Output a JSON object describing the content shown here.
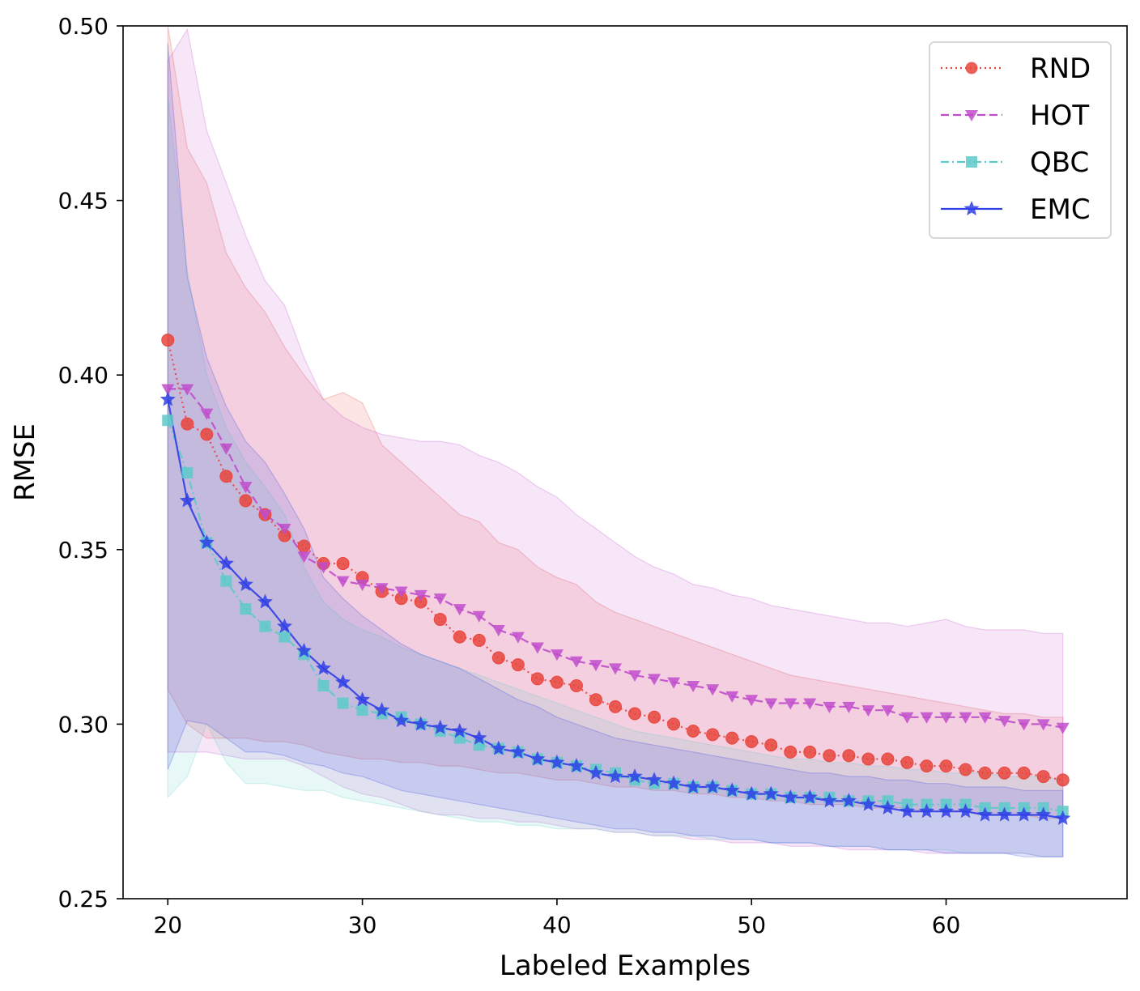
{
  "chart_data": {
    "type": "line",
    "title": "",
    "xlabel": "Labeled Examples",
    "ylabel": "RMSE",
    "xlim": [
      17.7,
      69.3
    ],
    "ylim": [
      0.25,
      0.5
    ],
    "xticks": [
      20,
      30,
      40,
      50,
      60
    ],
    "yticks": [
      0.25,
      0.3,
      0.35,
      0.4,
      0.45,
      0.5
    ],
    "ytick_labels": [
      "0.25",
      "0.30",
      "0.35",
      "0.40",
      "0.45",
      "0.50"
    ],
    "grid": false,
    "legend_position": "top-right",
    "series": [
      {
        "name": "RND",
        "color": "#e8453c",
        "linestyle": "dotted",
        "marker": "circle",
        "x_start": 20,
        "values": [
          0.41,
          0.386,
          0.383,
          0.371,
          0.364,
          0.36,
          0.354,
          0.351,
          0.346,
          0.346,
          0.342,
          0.338,
          0.336,
          0.335,
          0.33,
          0.325,
          0.324,
          0.319,
          0.317,
          0.313,
          0.312,
          0.311,
          0.307,
          0.305,
          0.303,
          0.302,
          0.3,
          0.298,
          0.297,
          0.296,
          0.295,
          0.294,
          0.292,
          0.292,
          0.291,
          0.291,
          0.29,
          0.29,
          0.289,
          0.288,
          0.288,
          0.287,
          0.286,
          0.286,
          0.286,
          0.285,
          0.284
        ],
        "upper": [
          0.5,
          0.465,
          0.455,
          0.435,
          0.425,
          0.418,
          0.408,
          0.4,
          0.393,
          0.395,
          0.392,
          0.38,
          0.375,
          0.37,
          0.365,
          0.36,
          0.358,
          0.352,
          0.35,
          0.345,
          0.342,
          0.34,
          0.335,
          0.332,
          0.33,
          0.328,
          0.326,
          0.324,
          0.322,
          0.32,
          0.318,
          0.316,
          0.314,
          0.313,
          0.312,
          0.311,
          0.31,
          0.309,
          0.308,
          0.307,
          0.306,
          0.305,
          0.304,
          0.303,
          0.303,
          0.302,
          0.302
        ],
        "lower": [
          0.31,
          0.3,
          0.296,
          0.296,
          0.296,
          0.295,
          0.295,
          0.294,
          0.292,
          0.291,
          0.29,
          0.29,
          0.289,
          0.289,
          0.288,
          0.288,
          0.287,
          0.286,
          0.286,
          0.285,
          0.284,
          0.284,
          0.283,
          0.282,
          0.282,
          0.281,
          0.281,
          0.28,
          0.28,
          0.279,
          0.279,
          0.278,
          0.278,
          0.277,
          0.277,
          0.277,
          0.276,
          0.276,
          0.276,
          0.275,
          0.275,
          0.275,
          0.274,
          0.274,
          0.274,
          0.273,
          0.273
        ]
      },
      {
        "name": "HOT",
        "color": "#c04ccb",
        "linestyle": "dashed",
        "marker": "triangle-down",
        "x_start": 20,
        "values": [
          0.396,
          0.396,
          0.389,
          0.379,
          0.368,
          0.36,
          0.356,
          0.348,
          0.345,
          0.341,
          0.34,
          0.339,
          0.338,
          0.337,
          0.336,
          0.333,
          0.331,
          0.327,
          0.325,
          0.322,
          0.32,
          0.318,
          0.317,
          0.316,
          0.314,
          0.313,
          0.312,
          0.311,
          0.31,
          0.308,
          0.307,
          0.306,
          0.306,
          0.306,
          0.305,
          0.305,
          0.304,
          0.304,
          0.302,
          0.302,
          0.302,
          0.302,
          0.302,
          0.301,
          0.3,
          0.3,
          0.299
        ],
        "upper": [
          0.49,
          0.499,
          0.47,
          0.455,
          0.44,
          0.427,
          0.42,
          0.405,
          0.393,
          0.388,
          0.385,
          0.383,
          0.382,
          0.381,
          0.381,
          0.38,
          0.377,
          0.375,
          0.372,
          0.368,
          0.365,
          0.36,
          0.356,
          0.352,
          0.348,
          0.345,
          0.343,
          0.34,
          0.339,
          0.337,
          0.336,
          0.334,
          0.333,
          0.332,
          0.331,
          0.33,
          0.329,
          0.329,
          0.328,
          0.329,
          0.33,
          0.328,
          0.327,
          0.327,
          0.327,
          0.326,
          0.326
        ],
        "lower": [
          0.292,
          0.292,
          0.292,
          0.291,
          0.29,
          0.29,
          0.29,
          0.288,
          0.285,
          0.282,
          0.28,
          0.279,
          0.277,
          0.275,
          0.274,
          0.274,
          0.273,
          0.273,
          0.272,
          0.272,
          0.271,
          0.27,
          0.27,
          0.269,
          0.269,
          0.268,
          0.268,
          0.267,
          0.267,
          0.266,
          0.266,
          0.266,
          0.265,
          0.265,
          0.265,
          0.264,
          0.264,
          0.264,
          0.264,
          0.263,
          0.263,
          0.263,
          0.263,
          0.263,
          0.263,
          0.262,
          0.262
        ]
      },
      {
        "name": "QBC",
        "color": "#5ccac9",
        "linestyle": "dashdot",
        "marker": "square",
        "x_start": 20,
        "values": [
          0.387,
          0.372,
          0.352,
          0.341,
          0.333,
          0.328,
          0.325,
          0.32,
          0.311,
          0.306,
          0.304,
          0.303,
          0.302,
          0.3,
          0.298,
          0.296,
          0.294,
          0.293,
          0.292,
          0.29,
          0.289,
          0.288,
          0.287,
          0.286,
          0.284,
          0.283,
          0.283,
          0.282,
          0.282,
          0.281,
          0.28,
          0.28,
          0.279,
          0.279,
          0.279,
          0.278,
          0.278,
          0.278,
          0.277,
          0.277,
          0.277,
          0.277,
          0.276,
          0.276,
          0.276,
          0.276,
          0.275
        ],
        "upper": [
          0.48,
          0.43,
          0.4,
          0.385,
          0.375,
          0.368,
          0.36,
          0.345,
          0.335,
          0.33,
          0.327,
          0.325,
          0.322,
          0.32,
          0.318,
          0.316,
          0.314,
          0.312,
          0.31,
          0.308,
          0.306,
          0.304,
          0.302,
          0.3,
          0.298,
          0.297,
          0.296,
          0.295,
          0.294,
          0.293,
          0.292,
          0.291,
          0.29,
          0.29,
          0.289,
          0.289,
          0.288,
          0.288,
          0.287,
          0.287,
          0.286,
          0.286,
          0.286,
          0.285,
          0.285,
          0.285,
          0.284
        ],
        "lower": [
          0.279,
          0.285,
          0.3,
          0.289,
          0.283,
          0.283,
          0.282,
          0.281,
          0.281,
          0.279,
          0.278,
          0.277,
          0.276,
          0.275,
          0.274,
          0.273,
          0.272,
          0.272,
          0.271,
          0.271,
          0.27,
          0.27,
          0.27,
          0.269,
          0.269,
          0.268,
          0.268,
          0.268,
          0.267,
          0.267,
          0.267,
          0.266,
          0.266,
          0.266,
          0.265,
          0.265,
          0.265,
          0.264,
          0.264,
          0.264,
          0.264,
          0.263,
          0.263,
          0.263,
          0.263,
          0.262,
          0.262
        ]
      },
      {
        "name": "EMC",
        "color": "#2f3ee6",
        "linestyle": "solid",
        "marker": "star",
        "x_start": 20,
        "values": [
          0.393,
          0.364,
          0.352,
          0.346,
          0.34,
          0.335,
          0.328,
          0.321,
          0.316,
          0.312,
          0.307,
          0.304,
          0.301,
          0.3,
          0.299,
          0.298,
          0.296,
          0.293,
          0.292,
          0.29,
          0.289,
          0.288,
          0.286,
          0.285,
          0.285,
          0.284,
          0.283,
          0.282,
          0.282,
          0.281,
          0.28,
          0.28,
          0.279,
          0.279,
          0.278,
          0.278,
          0.277,
          0.276,
          0.275,
          0.275,
          0.275,
          0.275,
          0.274,
          0.274,
          0.274,
          0.274,
          0.273
        ],
        "upper": [
          0.495,
          0.428,
          0.405,
          0.391,
          0.381,
          0.375,
          0.366,
          0.356,
          0.342,
          0.336,
          0.331,
          0.327,
          0.323,
          0.32,
          0.318,
          0.316,
          0.313,
          0.31,
          0.307,
          0.305,
          0.302,
          0.3,
          0.298,
          0.296,
          0.295,
          0.294,
          0.293,
          0.292,
          0.291,
          0.29,
          0.289,
          0.288,
          0.287,
          0.286,
          0.286,
          0.285,
          0.285,
          0.284,
          0.284,
          0.283,
          0.283,
          0.282,
          0.282,
          0.282,
          0.281,
          0.281,
          0.281
        ],
        "lower": [
          0.287,
          0.301,
          0.3,
          0.296,
          0.292,
          0.292,
          0.291,
          0.289,
          0.288,
          0.286,
          0.285,
          0.283,
          0.281,
          0.28,
          0.279,
          0.278,
          0.277,
          0.276,
          0.275,
          0.274,
          0.273,
          0.272,
          0.271,
          0.27,
          0.27,
          0.269,
          0.269,
          0.268,
          0.268,
          0.267,
          0.267,
          0.266,
          0.266,
          0.266,
          0.265,
          0.265,
          0.265,
          0.264,
          0.264,
          0.264,
          0.263,
          0.263,
          0.263,
          0.263,
          0.262,
          0.262,
          0.262
        ]
      }
    ]
  }
}
